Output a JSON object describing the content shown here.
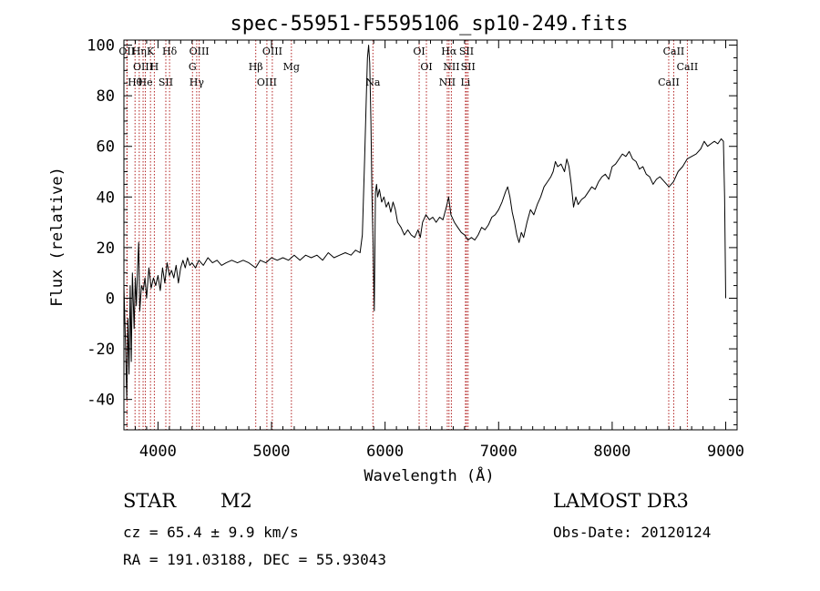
{
  "chart_data": {
    "type": "line",
    "title": "spec-55951-F5595106_sp10-249.fits",
    "xlabel": "Wavelength (Å)",
    "ylabel": "Flux (relative)",
    "xlim": [
      3700,
      9100
    ],
    "ylim": [
      -52,
      102
    ],
    "xticks": [
      4000,
      5000,
      6000,
      7000,
      8000,
      9000
    ],
    "yticks": [
      -40,
      -20,
      0,
      20,
      40,
      60,
      80,
      100
    ],
    "grid": false,
    "colors": {
      "spectrum": "#000000",
      "lines": "#b22222"
    },
    "series": [
      {
        "name": "flux",
        "points": [
          [
            3700,
            5
          ],
          [
            3715,
            -20
          ],
          [
            3725,
            -40
          ],
          [
            3735,
            -8
          ],
          [
            3745,
            -30
          ],
          [
            3755,
            5
          ],
          [
            3765,
            -25
          ],
          [
            3775,
            10
          ],
          [
            3790,
            -12
          ],
          [
            3800,
            8
          ],
          [
            3810,
            -3
          ],
          [
            3820,
            12
          ],
          [
            3830,
            22
          ],
          [
            3840,
            -5
          ],
          [
            3855,
            5
          ],
          [
            3870,
            3
          ],
          [
            3885,
            8
          ],
          [
            3900,
            0
          ],
          [
            3920,
            12
          ],
          [
            3940,
            4
          ],
          [
            3960,
            8
          ],
          [
            3980,
            5
          ],
          [
            4000,
            9
          ],
          [
            4020,
            3
          ],
          [
            4040,
            12
          ],
          [
            4060,
            6
          ],
          [
            4080,
            14
          ],
          [
            4100,
            9
          ],
          [
            4120,
            11
          ],
          [
            4140,
            8
          ],
          [
            4160,
            13
          ],
          [
            4180,
            6
          ],
          [
            4200,
            12
          ],
          [
            4220,
            15
          ],
          [
            4240,
            12
          ],
          [
            4260,
            16
          ],
          [
            4280,
            13
          ],
          [
            4300,
            14
          ],
          [
            4330,
            12
          ],
          [
            4360,
            15
          ],
          [
            4400,
            13
          ],
          [
            4440,
            16
          ],
          [
            4480,
            14
          ],
          [
            4520,
            15
          ],
          [
            4560,
            13
          ],
          [
            4600,
            14
          ],
          [
            4650,
            15
          ],
          [
            4700,
            14
          ],
          [
            4750,
            15
          ],
          [
            4800,
            14
          ],
          [
            4860,
            12
          ],
          [
            4900,
            15
          ],
          [
            4950,
            14
          ],
          [
            5000,
            16
          ],
          [
            5050,
            15
          ],
          [
            5100,
            16
          ],
          [
            5150,
            15
          ],
          [
            5200,
            17
          ],
          [
            5250,
            15
          ],
          [
            5300,
            17
          ],
          [
            5350,
            16
          ],
          [
            5400,
            17
          ],
          [
            5450,
            15
          ],
          [
            5500,
            18
          ],
          [
            5550,
            16
          ],
          [
            5600,
            17
          ],
          [
            5650,
            18
          ],
          [
            5700,
            17
          ],
          [
            5740,
            19
          ],
          [
            5780,
            18
          ],
          [
            5800,
            25
          ],
          [
            5820,
            55
          ],
          [
            5835,
            80
          ],
          [
            5845,
            95
          ],
          [
            5855,
            100
          ],
          [
            5865,
            93
          ],
          [
            5875,
            70
          ],
          [
            5885,
            40
          ],
          [
            5895,
            20
          ],
          [
            5905,
            -5
          ],
          [
            5915,
            42
          ],
          [
            5925,
            45
          ],
          [
            5935,
            40
          ],
          [
            5950,
            43
          ],
          [
            5970,
            38
          ],
          [
            5990,
            40
          ],
          [
            6010,
            36
          ],
          [
            6030,
            38
          ],
          [
            6050,
            34
          ],
          [
            6070,
            38
          ],
          [
            6090,
            35
          ],
          [
            6110,
            30
          ],
          [
            6140,
            28
          ],
          [
            6170,
            25
          ],
          [
            6200,
            27
          ],
          [
            6230,
            25
          ],
          [
            6260,
            24
          ],
          [
            6290,
            27
          ],
          [
            6310,
            24
          ],
          [
            6330,
            30
          ],
          [
            6360,
            33
          ],
          [
            6390,
            31
          ],
          [
            6420,
            32
          ],
          [
            6450,
            30
          ],
          [
            6480,
            32
          ],
          [
            6510,
            31
          ],
          [
            6540,
            36
          ],
          [
            6560,
            40
          ],
          [
            6580,
            33
          ],
          [
            6610,
            30
          ],
          [
            6640,
            28
          ],
          [
            6670,
            26
          ],
          [
            6700,
            25
          ],
          [
            6730,
            23
          ],
          [
            6760,
            24
          ],
          [
            6790,
            23
          ],
          [
            6820,
            25
          ],
          [
            6850,
            28
          ],
          [
            6880,
            27
          ],
          [
            6910,
            29
          ],
          [
            6940,
            32
          ],
          [
            6970,
            33
          ],
          [
            7000,
            35
          ],
          [
            7030,
            38
          ],
          [
            7060,
            42
          ],
          [
            7080,
            44
          ],
          [
            7100,
            40
          ],
          [
            7120,
            34
          ],
          [
            7140,
            30
          ],
          [
            7160,
            25
          ],
          [
            7180,
            22
          ],
          [
            7200,
            26
          ],
          [
            7220,
            24
          ],
          [
            7250,
            30
          ],
          [
            7280,
            35
          ],
          [
            7310,
            33
          ],
          [
            7340,
            37
          ],
          [
            7370,
            40
          ],
          [
            7400,
            44
          ],
          [
            7430,
            46
          ],
          [
            7460,
            48
          ],
          [
            7480,
            50
          ],
          [
            7500,
            54
          ],
          [
            7520,
            52
          ],
          [
            7550,
            53
          ],
          [
            7580,
            50
          ],
          [
            7600,
            55
          ],
          [
            7620,
            52
          ],
          [
            7640,
            45
          ],
          [
            7660,
            36
          ],
          [
            7680,
            40
          ],
          [
            7700,
            37
          ],
          [
            7730,
            39
          ],
          [
            7760,
            40
          ],
          [
            7790,
            42
          ],
          [
            7820,
            44
          ],
          [
            7850,
            43
          ],
          [
            7880,
            46
          ],
          [
            7910,
            48
          ],
          [
            7940,
            49
          ],
          [
            7970,
            47
          ],
          [
            8000,
            52
          ],
          [
            8030,
            53
          ],
          [
            8060,
            55
          ],
          [
            8090,
            57
          ],
          [
            8120,
            56
          ],
          [
            8150,
            58
          ],
          [
            8180,
            55
          ],
          [
            8210,
            54
          ],
          [
            8240,
            51
          ],
          [
            8270,
            52
          ],
          [
            8300,
            49
          ],
          [
            8330,
            48
          ],
          [
            8360,
            45
          ],
          [
            8390,
            47
          ],
          [
            8420,
            48
          ],
          [
            8460,
            46
          ],
          [
            8500,
            44
          ],
          [
            8540,
            46
          ],
          [
            8580,
            50
          ],
          [
            8620,
            52
          ],
          [
            8660,
            55
          ],
          [
            8700,
            56
          ],
          [
            8740,
            57
          ],
          [
            8780,
            59
          ],
          [
            8810,
            62
          ],
          [
            8840,
            60
          ],
          [
            8870,
            61
          ],
          [
            8900,
            62
          ],
          [
            8930,
            61
          ],
          [
            8960,
            63
          ],
          [
            8980,
            62
          ],
          [
            8990,
            40
          ],
          [
            9000,
            0
          ]
        ]
      }
    ],
    "lines": [
      {
        "wave": 3726,
        "label": "OII"
      },
      {
        "wave": 3729,
        "label": ""
      },
      {
        "wave": 3798,
        "label": "Hθ"
      },
      {
        "wave": 3835,
        "label": "Hη"
      },
      {
        "wave": 3869,
        "label": "OIII"
      },
      {
        "wave": 3889,
        "label": "He"
      },
      {
        "wave": 3934,
        "label": "K"
      },
      {
        "wave": 3968,
        "label": "H"
      },
      {
        "wave": 4069,
        "label": "SII"
      },
      {
        "wave": 4102,
        "label": "Hδ"
      },
      {
        "wave": 4304,
        "label": "G"
      },
      {
        "wave": 4341,
        "label": "Hγ"
      },
      {
        "wave": 4363,
        "label": "OIII"
      },
      {
        "wave": 4861,
        "label": "Hβ"
      },
      {
        "wave": 4959,
        "label": "OIII"
      },
      {
        "wave": 5007,
        "label": "OIII"
      },
      {
        "wave": 5175,
        "label": "Mg"
      },
      {
        "wave": 5893,
        "label": "Na"
      },
      {
        "wave": 6300,
        "label": "OI"
      },
      {
        "wave": 6364,
        "label": "OI"
      },
      {
        "wave": 6548,
        "label": "NII"
      },
      {
        "wave": 6563,
        "label": "Hα"
      },
      {
        "wave": 6584,
        "label": "NII"
      },
      {
        "wave": 6708,
        "label": "Li"
      },
      {
        "wave": 6717,
        "label": "SII"
      },
      {
        "wave": 6731,
        "label": "SII"
      },
      {
        "wave": 8498,
        "label": "CaII"
      },
      {
        "wave": 8542,
        "label": "CaII"
      },
      {
        "wave": 8662,
        "label": "CaII"
      }
    ]
  },
  "info": {
    "star_label": "STAR",
    "subclass": "M2",
    "survey": "LAMOST DR3",
    "redshift": "cz = 65.4 ± 9.9 km/s",
    "obs_date": "Obs-Date: 20120124",
    "coords": "RA = 191.03188, DEC =  55.93043"
  }
}
